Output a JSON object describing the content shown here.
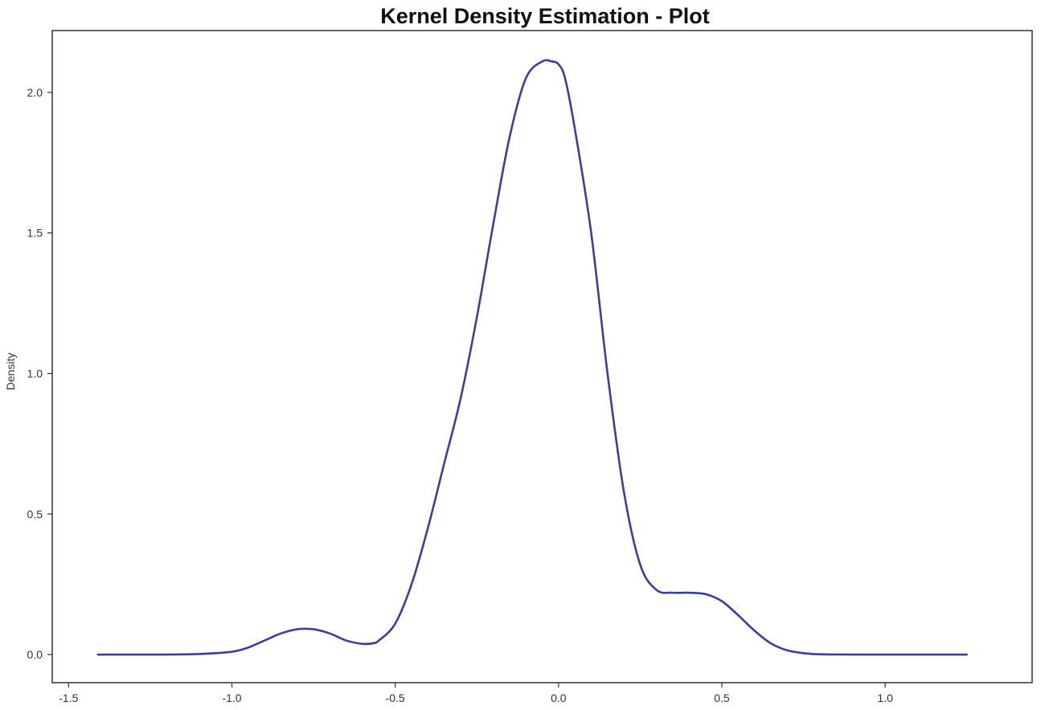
{
  "chart_data": {
    "type": "line",
    "title": "Kernel Density Estimation - Plot",
    "xlabel": "",
    "ylabel": "Density",
    "xlim": [
      -1.55,
      1.45
    ],
    "ylim": [
      -0.1,
      2.22
    ],
    "grid": false,
    "x_ticks": [
      {
        "value": -1.5,
        "label": "-1.5"
      },
      {
        "value": -1.0,
        "label": "-1.0"
      },
      {
        "value": -0.5,
        "label": "-0.5"
      },
      {
        "value": 0.0,
        "label": "0.0"
      },
      {
        "value": 0.5,
        "label": "0.5"
      },
      {
        "value": 1.0,
        "label": "1.0"
      }
    ],
    "y_ticks": [
      {
        "value": 0.0,
        "label": "0.0"
      },
      {
        "value": 0.5,
        "label": "0.5"
      },
      {
        "value": 1.0,
        "label": "1.0"
      },
      {
        "value": 1.5,
        "label": "1.5"
      },
      {
        "value": 2.0,
        "label": "2.0"
      }
    ],
    "series": [
      {
        "color": "#3a3f9a",
        "x": [
          -1.41,
          -1.3,
          -1.2,
          -1.1,
          -1.0,
          -0.95,
          -0.9,
          -0.85,
          -0.8,
          -0.75,
          -0.7,
          -0.65,
          -0.6,
          -0.57,
          -0.55,
          -0.5,
          -0.45,
          -0.4,
          -0.35,
          -0.3,
          -0.25,
          -0.2,
          -0.15,
          -0.1,
          -0.05,
          -0.02,
          0.0,
          0.02,
          0.05,
          0.1,
          0.15,
          0.2,
          0.25,
          0.3,
          0.35,
          0.4,
          0.45,
          0.5,
          0.55,
          0.6,
          0.65,
          0.7,
          0.75,
          0.8,
          0.9,
          1.0,
          1.1,
          1.25
        ],
        "y": [
          0.0,
          0.0,
          0.0,
          0.002,
          0.01,
          0.025,
          0.05,
          0.075,
          0.09,
          0.09,
          0.075,
          0.05,
          0.038,
          0.04,
          0.05,
          0.11,
          0.25,
          0.45,
          0.68,
          0.91,
          1.2,
          1.53,
          1.84,
          2.05,
          2.11,
          2.11,
          2.1,
          2.05,
          1.87,
          1.5,
          1.0,
          0.58,
          0.32,
          0.23,
          0.22,
          0.22,
          0.215,
          0.19,
          0.14,
          0.085,
          0.04,
          0.015,
          0.005,
          0.001,
          0.0,
          0.0,
          0.0,
          0.0
        ]
      }
    ]
  }
}
